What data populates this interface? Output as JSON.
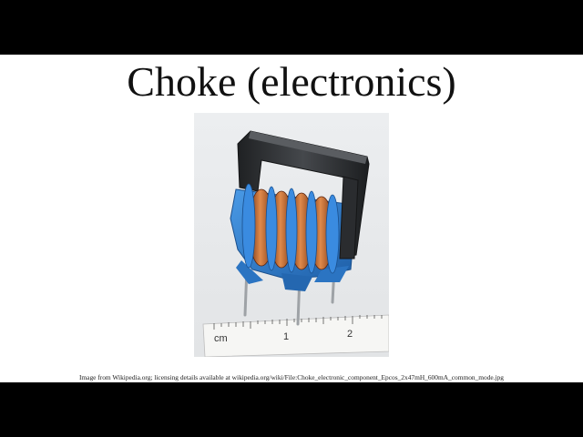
{
  "slide": {
    "title": "Choke (electronics)",
    "caption": "Image from Wikipedia.org; licensing details available at wikipedia.org/wiki/File:Choke_electronic_component_Epcos_2x47mH_600mA_common_mode.jpg"
  },
  "photo": {
    "subject": "common-mode choke component on ruler",
    "ruler_labels": {
      "unit": "cm",
      "mark_1": "1",
      "mark_2": "2"
    }
  },
  "colors": {
    "letterbox": "#000000",
    "slide_background": "#ffffff",
    "photo_background": "#e9eaec",
    "core": "#2e3033",
    "bobbin": "#2f7fd0",
    "copper": "#b5602e"
  }
}
